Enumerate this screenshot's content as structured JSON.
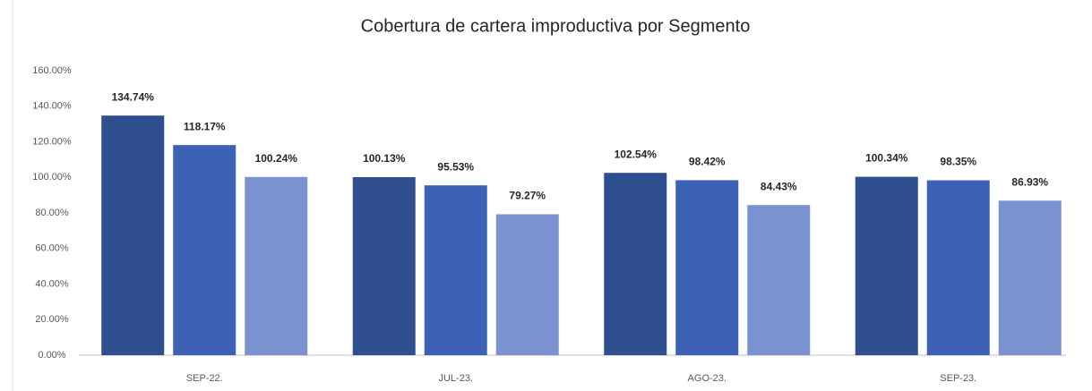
{
  "chart_data": {
    "type": "bar",
    "title": "Cobertura de cartera improductiva por Segmento",
    "categories": [
      "SEP-22.",
      "JUL-23.",
      "AGO-23.",
      "SEP-23."
    ],
    "series": [
      {
        "color": "#2f4f8f",
        "values": [
          134.74,
          100.13,
          102.54,
          100.34
        ],
        "value_labels": [
          "134.74%",
          "100.13%",
          "102.54%",
          "100.34%"
        ]
      },
      {
        "color": "#3d62b5",
        "values": [
          118.17,
          95.53,
          98.42,
          98.35
        ],
        "value_labels": [
          "118.17%",
          "95.53%",
          "98.42%",
          "98.35%"
        ]
      },
      {
        "color": "#7a93d0",
        "values": [
          100.24,
          79.27,
          84.43,
          86.93
        ],
        "value_labels": [
          "100.24%",
          "79.27%",
          "84.43%",
          "86.93%"
        ]
      }
    ],
    "ylim": [
      0,
      160
    ],
    "yticks": [
      {
        "value": 0,
        "label": "0.00%"
      },
      {
        "value": 20,
        "label": "20.00%"
      },
      {
        "value": 40,
        "label": "40.00%"
      },
      {
        "value": 60,
        "label": "60.00%"
      },
      {
        "value": 80,
        "label": "80.00%"
      },
      {
        "value": 100,
        "label": "100.00%"
      },
      {
        "value": 120,
        "label": "120.00%"
      },
      {
        "value": 140,
        "label": "140.00%"
      },
      {
        "value": 160,
        "label": "160.00%"
      }
    ],
    "grid": false
  }
}
